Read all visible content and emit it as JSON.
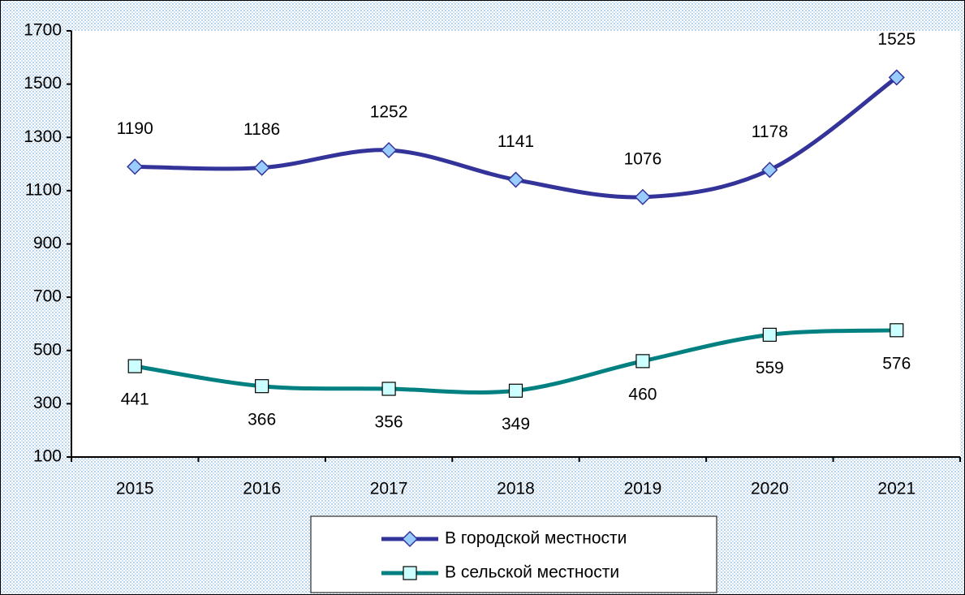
{
  "chart_data": {
    "type": "line",
    "categories": [
      "2015",
      "2016",
      "2017",
      "2018",
      "2019",
      "2020",
      "2021"
    ],
    "series": [
      {
        "name": "В городской местности",
        "color": "#333399",
        "marker_color": "#99ccff",
        "marker": "diamond",
        "values": [
          1190,
          1186,
          1252,
          1141,
          1076,
          1178,
          1525
        ]
      },
      {
        "name": "В сельской местности",
        "color": "#008080",
        "marker_color": "#ccffff",
        "marker": "square",
        "values": [
          441,
          366,
          356,
          349,
          460,
          559,
          576
        ]
      }
    ],
    "ylim": [
      100,
      1700
    ],
    "yticks": [
      100,
      300,
      500,
      700,
      900,
      1100,
      1300,
      1500,
      1700
    ]
  }
}
